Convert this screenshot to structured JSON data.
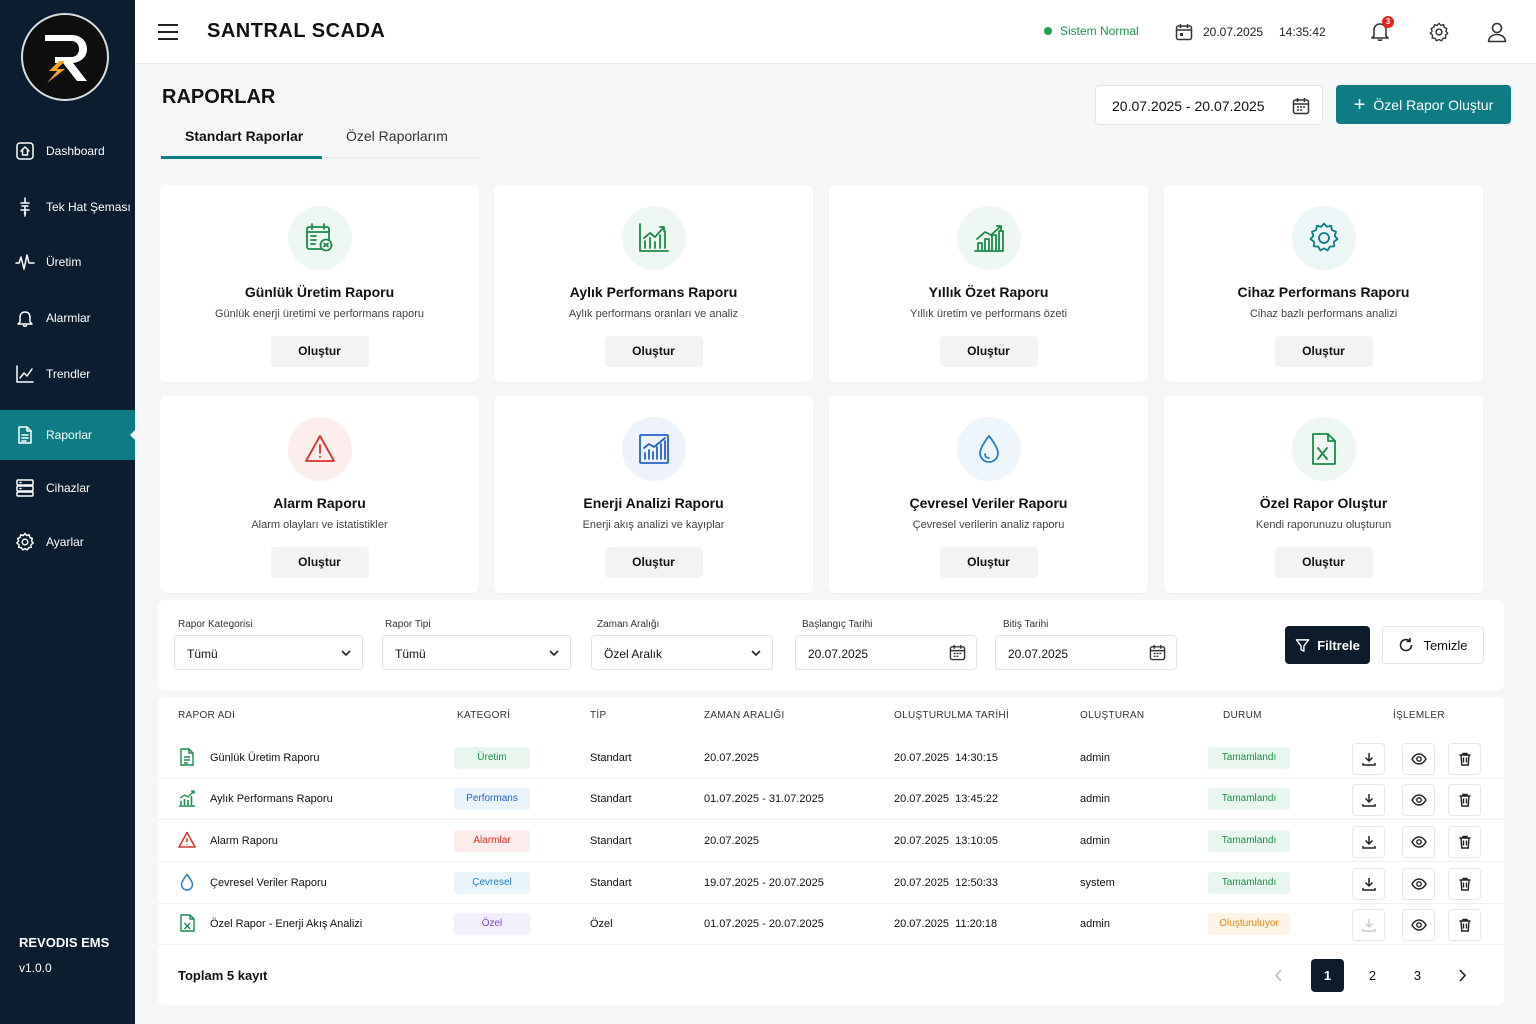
{
  "app": {
    "title": "SANTRAL SCADA",
    "brand": "REVODIS EMS",
    "version": "v1.0.0"
  },
  "sidebar": {
    "items": [
      {
        "label": "Dashboard",
        "icon": "dashboard-icon"
      },
      {
        "label": "Tek Hat Şeması",
        "icon": "single-line-diagram-icon"
      },
      {
        "label": "Üretim",
        "icon": "pulse-icon"
      },
      {
        "label": "Alarmlar",
        "icon": "bell-icon"
      },
      {
        "label": "Trendler",
        "icon": "trend-chart-icon"
      },
      {
        "label": "Raporlar",
        "icon": "report-icon",
        "active": true
      },
      {
        "label": "Cihazlar",
        "icon": "server-icon"
      },
      {
        "label": "Ayarlar",
        "icon": "gear-icon"
      }
    ]
  },
  "topbar": {
    "status": "Sistem Normal",
    "date": "20.07.2025",
    "time": "14:35:42",
    "notifications": "3"
  },
  "page": {
    "title": "RAPORLAR",
    "tabs": [
      "Standart Raporlar",
      "Özel Raporlarım"
    ],
    "date_range": "20.07.2025 - 20.07.2025",
    "create_button": "Özel Rapor Oluştur"
  },
  "cards": [
    {
      "title": "Günlük Üretim Raporu",
      "desc": "Günlük enerji üretimi ve performans raporu",
      "button": "Oluştur",
      "icon": "calendar-report-icon",
      "color": "#1b8a4c"
    },
    {
      "title": "Aylık Performans Raporu",
      "desc": "Aylık performans oranları ve analiz",
      "button": "Oluştur",
      "icon": "line-chart-icon",
      "color": "#1b8a4c"
    },
    {
      "title": "Yıllık Özet Raporu",
      "desc": "Yıllık üretim ve performans özeti",
      "button": "Oluştur",
      "icon": "bar-chart-icon",
      "color": "#1b8a4c"
    },
    {
      "title": "Cihaz Performans Raporu",
      "desc": "Cihaz bazlı performans analizi",
      "button": "Oluştur",
      "icon": "gear-icon",
      "color": "#0f7c84"
    },
    {
      "title": "Alarm Raporu",
      "desc": "Alarm olayları ve istatistikler",
      "button": "Oluştur",
      "icon": "warning-icon",
      "color": "#d9302c"
    },
    {
      "title": "Enerji Analizi Raporu",
      "desc": "Enerji akış analizi ve kayıplar",
      "button": "Oluştur",
      "icon": "analytics-chart-icon",
      "color": "#2563c9"
    },
    {
      "title": "Çevresel Veriler Raporu",
      "desc": "Çevresel verilerin analiz raporu",
      "button": "Oluştur",
      "icon": "water-drop-icon",
      "color": "#2b7fc4"
    },
    {
      "title": "Özel Rapor Oluştur",
      "desc": "Kendi raporunuzu oluşturun",
      "button": "Oluştur",
      "icon": "excel-file-icon",
      "color": "#1b8a4c"
    }
  ],
  "filters": {
    "category": {
      "label": "Rapor Kategorisi",
      "value": "Tümü"
    },
    "type": {
      "label": "Rapor Tipi",
      "value": "Tümü"
    },
    "range": {
      "label": "Zaman Aralığı",
      "value": "Özel Aralık"
    },
    "start": {
      "label": "Başlangıç Tarihi",
      "value": "20.07.2025"
    },
    "end": {
      "label": "Bitiş Tarihi",
      "value": "20.07.2025"
    },
    "filter_button": "Filtrele",
    "clear_button": "Temizle"
  },
  "table": {
    "headers": [
      "RAPOR ADI",
      "KATEGORİ",
      "TİP",
      "ZAMAN ARALIĞI",
      "OLUŞTURULMA TARİHİ",
      "OLUŞTURAN",
      "DURUM",
      "İŞLEMLER"
    ],
    "rows": [
      {
        "name": "Günlük Üretim Raporu",
        "category": "Üretim",
        "type": "Standart",
        "range": "20.07.2025",
        "created": "20.07.2025  14:30:15",
        "by": "admin",
        "status": "Tamamlandı"
      },
      {
        "name": "Aylık Performans Raporu",
        "category": "Performans",
        "type": "Standart",
        "range": "01.07.2025 - 31.07.2025",
        "created": "20.07.2025  13:45:22",
        "by": "admin",
        "status": "Tamamlandı"
      },
      {
        "name": "Alarm Raporu",
        "category": "Alarmlar",
        "type": "Standart",
        "range": "20.07.2025",
        "created": "20.07.2025  13:10:05",
        "by": "admin",
        "status": "Tamamlandı"
      },
      {
        "name": "Çevresel Veriler Raporu",
        "category": "Çevresel",
        "type": "Standart",
        "range": "19.07.2025 - 20.07.2025",
        "created": "20.07.2025  12:50:33",
        "by": "system",
        "status": "Tamamlandı"
      },
      {
        "name": "Özel Rapor - Enerji Akış Analizi",
        "category": "Özel",
        "type": "Özel",
        "range": "01.07.2025 - 20.07.2025",
        "created": "20.07.2025  11:20:18",
        "by": "admin",
        "status": "Oluşturuluyor"
      }
    ],
    "total": "Toplam 5 kayıt",
    "pages": [
      "1",
      "2",
      "3"
    ]
  },
  "colors": {
    "primary": "#0f7c84",
    "sidebar": "#0b1d2e",
    "success": "#1f8f4e",
    "danger": "#d9302c",
    "warning": "#e08a1e"
  }
}
